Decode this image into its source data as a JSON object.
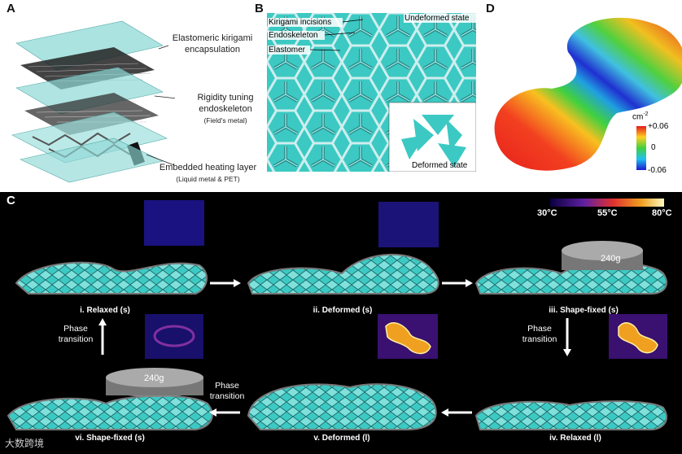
{
  "panel_labels": {
    "a": "A",
    "b": "B",
    "c": "C",
    "d": "D"
  },
  "panel_a": {
    "layer1": "Elastomeric kirigami encapsulation",
    "layer1_line1": "Elastomeric kirigami",
    "layer1_line2": "encapsulation",
    "layer2_line1": "Rigidity tuning",
    "layer2_line2": "endoskeleton",
    "layer2_sub": "(Field's metal)",
    "layer3": "Embedded heating layer",
    "layer3_sub": "(Liquid metal & PET)"
  },
  "panel_b": {
    "incisions": "Kirigami incisions",
    "endoskeleton": "Endoskeleton",
    "elastomer": "Elastomer",
    "undeformed": "Undeformed state",
    "deformed": "Deformed state"
  },
  "panel_d": {
    "unit": "cm",
    "unit_exp": "-2",
    "ticks": [
      "+0.06",
      "0",
      "-0.06"
    ]
  },
  "panel_c": {
    "colorbar_ticks": [
      "30°C",
      "55°C",
      "80°C"
    ],
    "weight": "240g",
    "stages": {
      "s1": "i. Relaxed (s)",
      "s2": "ii. Deformed (s)",
      "s3": "iii. Shape-fixed (s)",
      "s4": "iv. Relaxed (l)",
      "s5": "v. Deformed (l)",
      "s6": "vi. Shape-fixed (s)"
    },
    "phase_transition": [
      "Phase",
      "transition"
    ]
  },
  "watermark": "大数跨境",
  "colors": {
    "teal": "#3cc9c3",
    "teal_light": "#7fe0dc",
    "dark_bg": "#000000"
  }
}
